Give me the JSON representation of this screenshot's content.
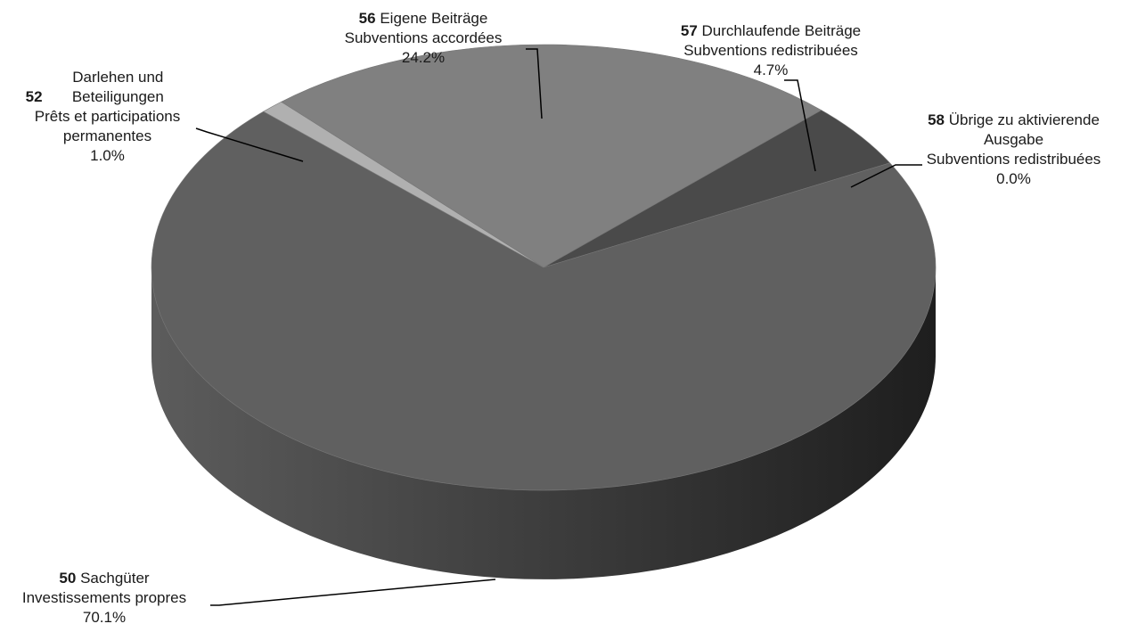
{
  "chart_data": {
    "type": "pie",
    "style": "3d",
    "colors": {
      "50": "#606060",
      "52": "#b0b0b0",
      "56": "#808080",
      "57": "#4a4a4a",
      "58": "#3c3c3c",
      "side_dark": "#222222",
      "side_light": "#5a5a5a"
    },
    "slices": [
      {
        "code": "50",
        "name_de": "Sachgüter",
        "name_fr": "Investissements propres",
        "value": 70.1,
        "value_label": "70.1%"
      },
      {
        "code": "52",
        "name_de": "Darlehen und Beteiligungen",
        "name_fr": "Prêts et participations permanentes",
        "value": 1.0,
        "value_label": "1.0%"
      },
      {
        "code": "56",
        "name_de": "Eigene Beiträge",
        "name_fr": "Subventions accordées",
        "value": 24.2,
        "value_label": "24.2%"
      },
      {
        "code": "57",
        "name_de": "Durchlaufende Beiträge",
        "name_fr": "Subventions redistribuées",
        "value": 4.7,
        "value_label": "4.7%"
      },
      {
        "code": "58",
        "name_de": "Übrige zu aktivierende Ausgabe",
        "name_fr": "Subventions redistribuées",
        "value": 0.0,
        "value_label": "0.0%"
      }
    ]
  }
}
